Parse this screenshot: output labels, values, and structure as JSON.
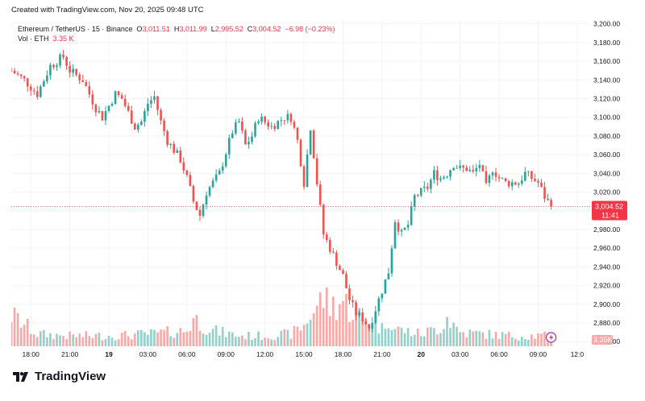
{
  "header": {
    "created_text": "Created with TradingView.com, Nov 20, 2025 09:48 UTC"
  },
  "legend": {
    "symbol": "Ethereum / TetherUS · 15 · Binance",
    "open_label": "O",
    "open": "3,011.51",
    "high_label": "H",
    "high": "3,011.99",
    "low_label": "L",
    "low": "2,995.52",
    "close_label": "C",
    "close": "3,004.52",
    "change": "−6.98 (−0.23%)",
    "volume_label": "Vol · ETH",
    "volume": "3.35 K"
  },
  "price_tag": {
    "price": "3,004.52",
    "countdown": "11:41"
  },
  "volume_tag": "3.35K",
  "footer": {
    "brand": "TradingView"
  },
  "colors": {
    "up": "#26a69a",
    "down": "#ef5350",
    "up_volume": "#92d1c9",
    "down_volume": "#f7a9a7",
    "price_tag": "#f23645",
    "grid": "#f0f3fa"
  },
  "chart_data": {
    "type": "candlestick",
    "title": "Ethereum / TetherUS · 15 · Binance",
    "y_axis": {
      "ticks": [
        "3,200.00",
        "3,180.00",
        "3,160.00",
        "3,140.00",
        "3,120.00",
        "3,100.00",
        "3,080.00",
        "3,060.00",
        "3,040.00",
        "3,020.00",
        "3,000.00",
        "2,980.00",
        "2,960.00",
        "2,940.00",
        "2,920.00",
        "2,900.00",
        "2,880.00",
        "2,860.00"
      ],
      "tick_values": [
        3200,
        3180,
        3160,
        3140,
        3120,
        3100,
        3080,
        3060,
        3040,
        3020,
        3000,
        2980,
        2960,
        2940,
        2920,
        2900,
        2880,
        2860
      ],
      "range": [
        2855,
        3204
      ]
    },
    "x_axis": {
      "ticks": [
        "18:00",
        "21:00",
        "19",
        "03:00",
        "06:00",
        "09:00",
        "12:00",
        "15:00",
        "18:00",
        "21:00",
        "20",
        "03:00",
        "06:00",
        "09:00",
        "12:0"
      ],
      "tick_hours": [
        18,
        21,
        24,
        27,
        30,
        33,
        36,
        39,
        42,
        45,
        48,
        51,
        54,
        57,
        60
      ],
      "range_hours": [
        16.5,
        61
      ]
    },
    "last_price": 3004.52,
    "price_path": [
      [
        16.5,
        3150
      ],
      [
        17.5,
        3140
      ],
      [
        18.5,
        3125
      ],
      [
        19.5,
        3155
      ],
      [
        20.5,
        3165
      ],
      [
        21.0,
        3150
      ],
      [
        22.0,
        3140
      ],
      [
        23.0,
        3110
      ],
      [
        23.5,
        3100
      ],
      [
        24.5,
        3125
      ],
      [
        25.0,
        3120
      ],
      [
        25.5,
        3105
      ],
      [
        26.0,
        3090
      ],
      [
        26.5,
        3095
      ],
      [
        27.0,
        3115
      ],
      [
        27.5,
        3122
      ],
      [
        28.0,
        3095
      ],
      [
        28.5,
        3075
      ],
      [
        29.5,
        3055
      ],
      [
        30.0,
        3035
      ],
      [
        30.5,
        3010
      ],
      [
        31.0,
        2995
      ],
      [
        31.5,
        3020
      ],
      [
        32.5,
        3040
      ],
      [
        33.5,
        3085
      ],
      [
        34.0,
        3095
      ],
      [
        34.5,
        3070
      ],
      [
        35.0,
        3080
      ],
      [
        35.5,
        3100
      ],
      [
        36.5,
        3090
      ],
      [
        37.5,
        3100
      ],
      [
        38.0,
        3100
      ],
      [
        38.5,
        3075
      ],
      [
        39.0,
        3030
      ],
      [
        39.5,
        3090
      ],
      [
        40.0,
        3030
      ],
      [
        40.5,
        2975
      ],
      [
        41.0,
        2960
      ],
      [
        41.5,
        2945
      ],
      [
        42.0,
        2930
      ],
      [
        42.5,
        2905
      ],
      [
        43.0,
        2890
      ],
      [
        43.5,
        2885
      ],
      [
        44.0,
        2875
      ],
      [
        44.5,
        2895
      ],
      [
        45.0,
        2915
      ],
      [
        45.5,
        2935
      ],
      [
        46.0,
        2990
      ],
      [
        46.5,
        2975
      ],
      [
        47.0,
        2985
      ],
      [
        47.5,
        3015
      ],
      [
        48.0,
        3020
      ],
      [
        48.5,
        3025
      ],
      [
        49.0,
        3040
      ],
      [
        49.5,
        3035
      ],
      [
        50.0,
        3040
      ],
      [
        50.5,
        3050
      ],
      [
        51.0,
        3045
      ],
      [
        51.5,
        3045
      ],
      [
        52.0,
        3040
      ],
      [
        52.5,
        3050
      ],
      [
        53.0,
        3025
      ],
      [
        53.5,
        3045
      ],
      [
        54.0,
        3035
      ],
      [
        54.5,
        3030
      ],
      [
        55.0,
        3030
      ],
      [
        55.5,
        3030
      ],
      [
        56.0,
        3040
      ],
      [
        56.5,
        3035
      ],
      [
        57.0,
        3030
      ],
      [
        57.5,
        3015
      ],
      [
        58.0,
        3004.52
      ]
    ],
    "volume_path": [
      [
        16.5,
        0.9
      ],
      [
        18.5,
        0.35
      ],
      [
        21.0,
        0.3
      ],
      [
        24.0,
        0.3
      ],
      [
        27.0,
        0.35
      ],
      [
        30.0,
        0.45
      ],
      [
        30.5,
        0.8
      ],
      [
        32.0,
        0.45
      ],
      [
        34.0,
        0.3
      ],
      [
        36.0,
        0.3
      ],
      [
        38.0,
        0.35
      ],
      [
        39.0,
        0.6
      ],
      [
        39.5,
        0.9
      ],
      [
        40.5,
        1.4
      ],
      [
        41.0,
        1.15
      ],
      [
        42.0,
        1.3
      ],
      [
        43.0,
        0.9
      ],
      [
        44.0,
        0.8
      ],
      [
        45.0,
        0.5
      ],
      [
        45.5,
        0.9
      ],
      [
        46.0,
        0.5
      ],
      [
        48.0,
        0.35
      ],
      [
        49.5,
        0.55
      ],
      [
        50.0,
        0.85
      ],
      [
        51.0,
        0.4
      ],
      [
        53.0,
        0.35
      ],
      [
        55.0,
        0.3
      ],
      [
        57.0,
        0.3
      ],
      [
        58.0,
        0.3
      ]
    ]
  }
}
